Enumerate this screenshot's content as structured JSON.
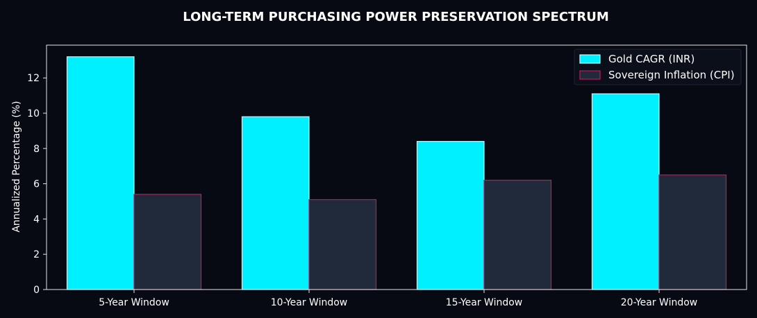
{
  "chart_data": {
    "type": "bar",
    "title": "LONG-TERM PURCHASING POWER PRESERVATION SPECTRUM",
    "xlabel": "",
    "ylabel": "Annualized Percentage (%)",
    "categories": [
      "5-Year Window",
      "10-Year Window",
      "15-Year Window",
      "20-Year Window"
    ],
    "series": [
      {
        "name": "Gold CAGR (INR)",
        "values": [
          13.2,
          9.8,
          8.4,
          11.1
        ],
        "fill": "#00f0ff",
        "edge": "#b8fbff"
      },
      {
        "name": "Sovereign Inflation (CPI)",
        "values": [
          5.4,
          5.1,
          6.2,
          6.5
        ],
        "fill": "#212a3b",
        "edge": "#c2185b"
      }
    ],
    "ylim": [
      0,
      13.86
    ],
    "yticks": [
      0,
      2,
      4,
      6,
      8,
      10,
      12
    ],
    "grid": false,
    "legend_position": "top-right",
    "colors": {
      "background": "#070a12",
      "axes": "#e6e6e6",
      "text": "#ffffff"
    }
  }
}
